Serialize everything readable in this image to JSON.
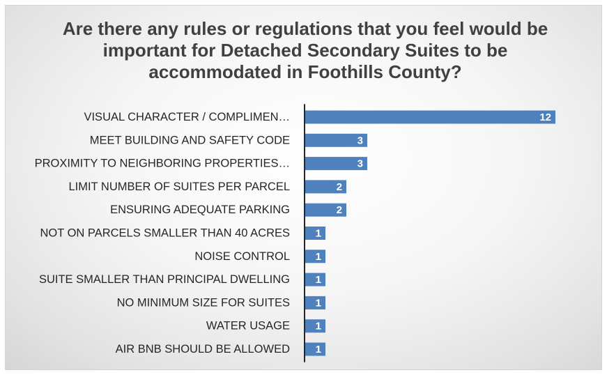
{
  "chart_data": {
    "type": "bar",
    "orientation": "horizontal",
    "title": "Are there any rules or regulations that you feel would be important for Detached Secondary Suites to be accommodated in Foothills County?",
    "categories": [
      "VISUAL CHARACTER / COMPLIMEN…",
      "MEET BUILDING AND SAFETY CODE",
      "PROXIMITY TO NEIGHBORING PROPERTIES…",
      "LIMIT NUMBER OF SUITES PER PARCEL",
      "ENSURING ADEQUATE PARKING",
      "NOT ON PARCELS SMALLER THAN 40 ACRES",
      "NOISE CONTROL",
      "SUITE SMALLER THAN PRINCIPAL DWELLING",
      "NO MINIMUM SIZE FOR SUITES",
      "WATER USAGE",
      "AIR BNB SHOULD BE ALLOWED"
    ],
    "values": [
      12,
      3,
      3,
      2,
      2,
      1,
      1,
      1,
      1,
      1,
      1
    ],
    "data_labels": true,
    "grid": false,
    "legend": "none",
    "bar_color": "#4f81bd",
    "axis_color": "#262626"
  }
}
